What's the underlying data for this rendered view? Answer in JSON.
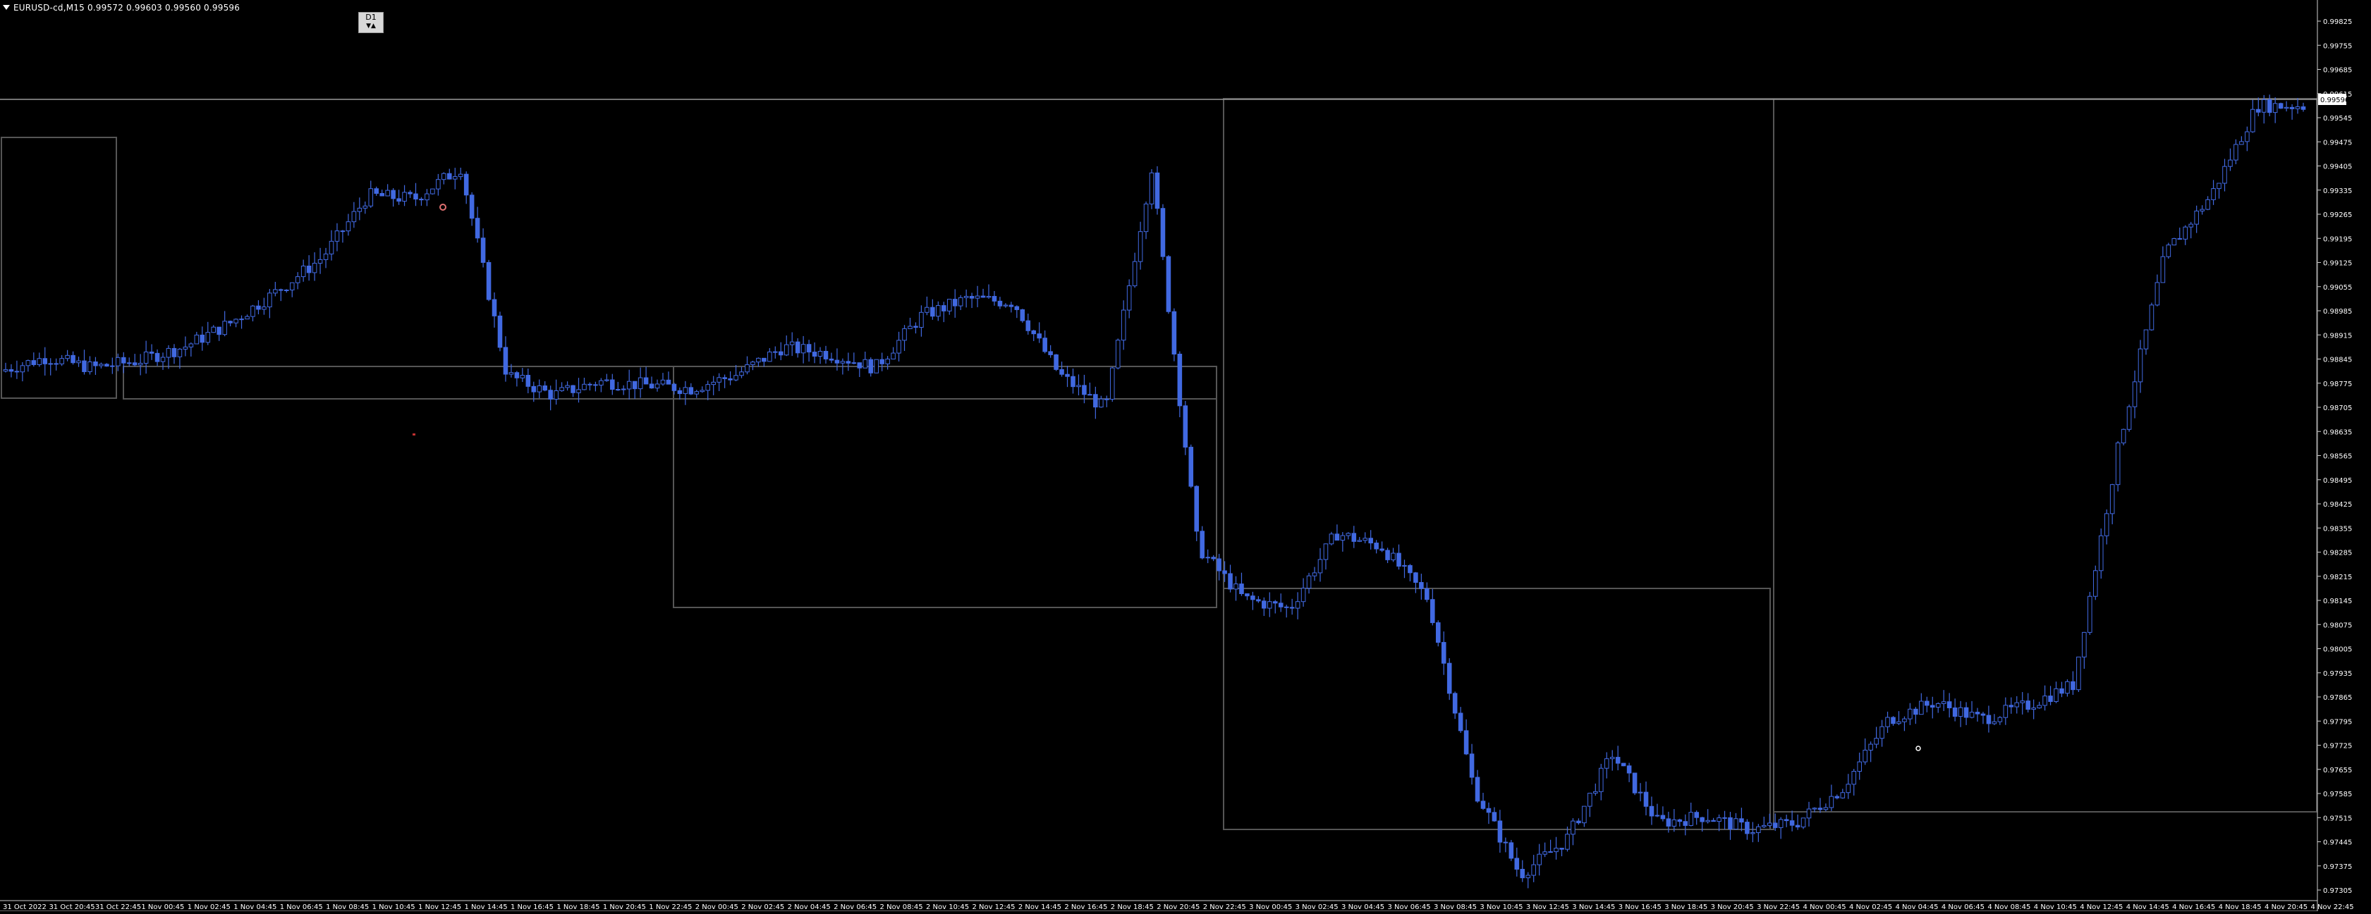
{
  "window": {
    "title": "EURUSD-cd,M15  0.99572 0.99603 0.99560 0.99596"
  },
  "timeframe_button": {
    "label": "D1",
    "icon": "up-down-arrows-icon"
  },
  "colors": {
    "background": "#000000",
    "candle": "#4169e1",
    "frame": "#555555",
    "grid_text": "#ffffff",
    "price_line": "#9a9a9a",
    "price_tag_bg": "#ffffff"
  },
  "price_axis": {
    "labels": [
      "0.99825",
      "0.99755",
      "0.99685",
      "0.99615",
      "0.99545",
      "0.99475",
      "0.99405",
      "0.99335",
      "0.99265",
      "0.99195",
      "0.99125",
      "0.99055",
      "0.98985",
      "0.98915",
      "0.98845",
      "0.98775",
      "0.98705",
      "0.98635",
      "0.98565",
      "0.98495",
      "0.98425",
      "0.98355",
      "0.98285",
      "0.98215",
      "0.98145",
      "0.98075",
      "0.98005",
      "0.97935",
      "0.97865",
      "0.97795",
      "0.97725",
      "0.97655",
      "0.97585",
      "0.97515",
      "0.97445",
      "0.97375",
      "0.97305"
    ],
    "current_price": "0.99596"
  },
  "time_axis": {
    "labels": [
      "31 Oct 2022",
      "31 Oct 20:45",
      "31 Oct 22:45",
      "1 Nov 00:45",
      "1 Nov 02:45",
      "1 Nov 04:45",
      "1 Nov 06:45",
      "1 Nov 08:45",
      "1 Nov 10:45",
      "1 Nov 12:45",
      "1 Nov 14:45",
      "1 Nov 16:45",
      "1 Nov 18:45",
      "1 Nov 20:45",
      "1 Nov 22:45",
      "2 Nov 00:45",
      "2 Nov 02:45",
      "2 Nov 04:45",
      "2 Nov 06:45",
      "2 Nov 08:45",
      "2 Nov 10:45",
      "2 Nov 12:45",
      "2 Nov 14:45",
      "2 Nov 16:45",
      "2 Nov 18:45",
      "2 Nov 20:45",
      "2 Nov 22:45",
      "3 Nov 00:45",
      "3 Nov 02:45",
      "3 Nov 04:45",
      "3 Nov 06:45",
      "3 Nov 08:45",
      "3 Nov 10:45",
      "3 Nov 12:45",
      "3 Nov 14:45",
      "3 Nov 16:45",
      "3 Nov 18:45",
      "3 Nov 20:45",
      "3 Nov 22:45",
      "4 Nov 00:45",
      "4 Nov 02:45",
      "4 Nov 04:45",
      "4 Nov 06:45",
      "4 Nov 08:45",
      "4 Nov 10:45",
      "4 Nov 12:45",
      "4 Nov 14:45",
      "4 Nov 16:45",
      "4 Nov 18:45",
      "4 Nov 20:45",
      "4 Nov 22:45"
    ]
  },
  "price_path": {
    "times": [
      0,
      1,
      2,
      3,
      4,
      5,
      6,
      7,
      8,
      9,
      10,
      11,
      12,
      13,
      14,
      15,
      16,
      17,
      18,
      19,
      20,
      21,
      22,
      23,
      24,
      25,
      26,
      27,
      28,
      29,
      30,
      31,
      32,
      33,
      34,
      35,
      36,
      37,
      38,
      39,
      40,
      41,
      42,
      43,
      44,
      45,
      46,
      47,
      48,
      49,
      50
    ],
    "prices": [
      0.9881,
      0.9885,
      0.9882,
      0.9884,
      0.9888,
      0.9895,
      0.9904,
      0.9914,
      0.9932,
      0.9931,
      0.994,
      0.988,
      0.9874,
      0.9878,
      0.9877,
      0.9876,
      0.988,
      0.9888,
      0.9886,
      0.9882,
      0.9897,
      0.9902,
      0.9901,
      0.988,
      0.987,
      0.994,
      0.983,
      0.9815,
      0.9812,
      0.9834,
      0.983,
      0.9815,
      0.976,
      0.9735,
      0.9745,
      0.977,
      0.975,
      0.9752,
      0.9748,
      0.975,
      0.976,
      0.978,
      0.9785,
      0.978,
      0.9784,
      0.979,
      0.986,
      0.9915,
      0.9932,
      0.9958,
      0.9958
    ]
  }
}
